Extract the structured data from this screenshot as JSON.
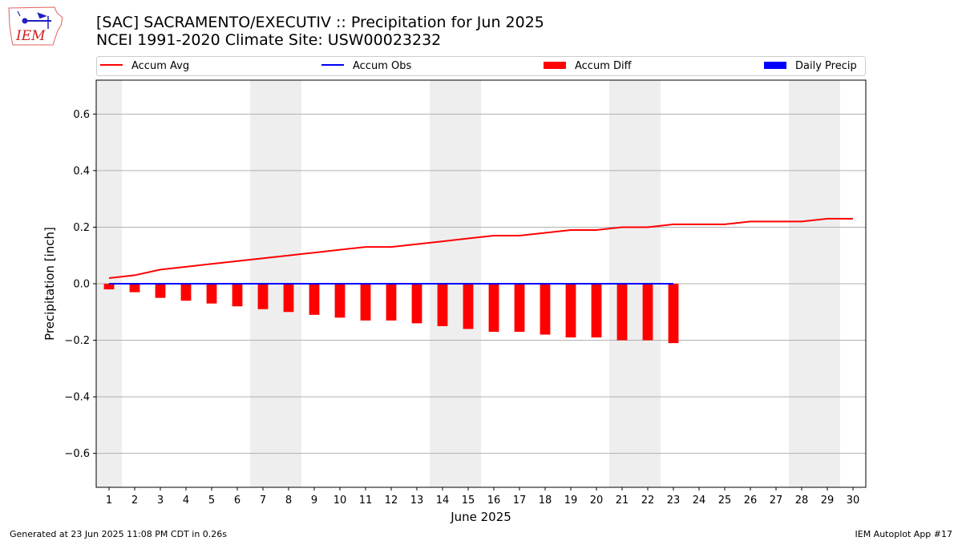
{
  "header": {
    "title_line1": "[SAC] SACRAMENTO/EXECUTIV :: Precipitation for Jun 2025",
    "title_line2": "NCEI 1991-2020 Climate Site: USW00023232",
    "logo_text": "IEM"
  },
  "footer": {
    "left": "Generated at 23 Jun 2025 11:08 PM CDT in 0.26s",
    "right": "IEM Autoplot App #17"
  },
  "colors": {
    "accum_avg": "#ff0000",
    "accum_obs": "#0000ff",
    "accum_diff": "#ff0000",
    "daily_precip": "#0000ff",
    "weekend_shade": "#eeeeee",
    "grid": "#b0b0b0"
  },
  "chart_data": {
    "type": "bar",
    "xlabel": "June 2025",
    "ylabel": "Precipitation [inch]",
    "ylim": [
      -0.72,
      0.72
    ],
    "yticks": [
      -0.6,
      -0.4,
      -0.2,
      0.0,
      0.2,
      0.4,
      0.6
    ],
    "ytick_labels": [
      "−0.6",
      "−0.4",
      "−0.2",
      "0.0",
      "0.2",
      "0.4",
      "0.6"
    ],
    "grid": "horizontal",
    "legend_placement": "top",
    "legend": [
      "Accum Avg",
      "Accum Obs",
      "Accum Diff",
      "Daily Precip"
    ],
    "days": [
      1,
      2,
      3,
      4,
      5,
      6,
      7,
      8,
      9,
      10,
      11,
      12,
      13,
      14,
      15,
      16,
      17,
      18,
      19,
      20,
      21,
      22,
      23,
      24,
      25,
      26,
      27,
      28,
      29,
      30
    ],
    "weekends": [
      1,
      7,
      8,
      14,
      15,
      21,
      22,
      28,
      29
    ],
    "series": [
      {
        "name": "Accum Avg",
        "kind": "line",
        "values": [
          0.02,
          0.03,
          0.05,
          0.06,
          0.07,
          0.08,
          0.09,
          0.1,
          0.11,
          0.12,
          0.13,
          0.13,
          0.14,
          0.15,
          0.16,
          0.17,
          0.17,
          0.18,
          0.19,
          0.19,
          0.2,
          0.2,
          0.21,
          0.21,
          0.21,
          0.22,
          0.22,
          0.22,
          0.23,
          0.23
        ]
      },
      {
        "name": "Accum Obs",
        "kind": "line",
        "values": [
          0,
          0,
          0,
          0,
          0,
          0,
          0,
          0,
          0,
          0,
          0,
          0,
          0,
          0,
          0,
          0,
          0,
          0,
          0,
          0,
          0,
          0,
          0
        ]
      },
      {
        "name": "Accum Diff",
        "kind": "bar",
        "values": [
          -0.02,
          -0.03,
          -0.05,
          -0.06,
          -0.07,
          -0.08,
          -0.09,
          -0.1,
          -0.11,
          -0.12,
          -0.13,
          -0.13,
          -0.14,
          -0.15,
          -0.16,
          -0.17,
          -0.17,
          -0.18,
          -0.19,
          -0.19,
          -0.2,
          -0.2,
          -0.21
        ]
      },
      {
        "name": "Daily Precip",
        "kind": "bar",
        "values": [
          0,
          0,
          0,
          0,
          0,
          0,
          0,
          0,
          0,
          0,
          0,
          0,
          0,
          0,
          0,
          0,
          0,
          0,
          0,
          0,
          0,
          0,
          0
        ]
      }
    ]
  }
}
